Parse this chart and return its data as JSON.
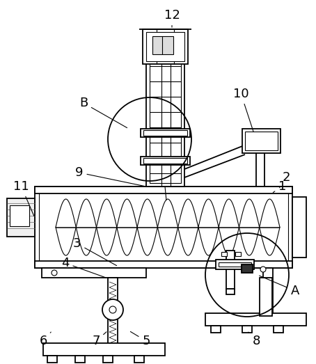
{
  "bg_color": "#ffffff",
  "lc": "#000000",
  "lw": 1.3,
  "tlw": 0.8,
  "fs": 13
}
